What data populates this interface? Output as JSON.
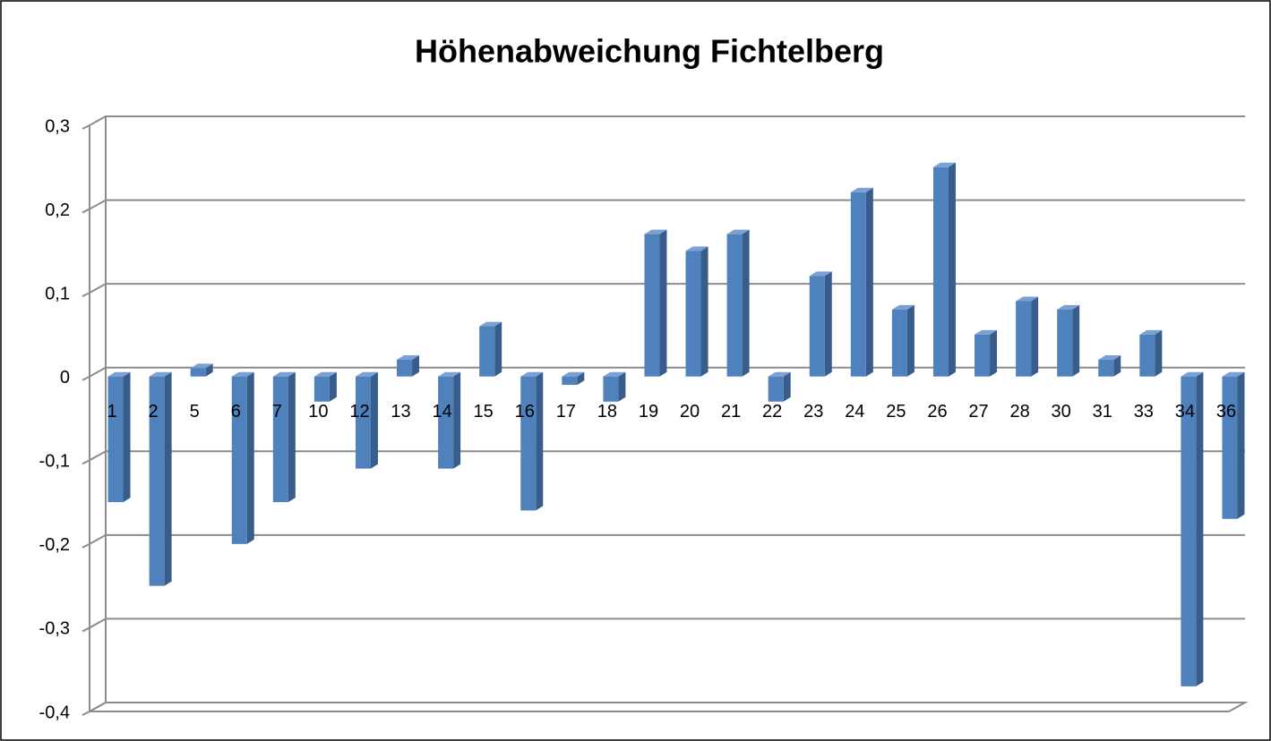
{
  "chart_data": {
    "type": "bar",
    "title": "Höhenabweichung Fichtelberg",
    "categories": [
      "1",
      "2",
      "5",
      "6",
      "7",
      "10",
      "12",
      "13",
      "14",
      "15",
      "16",
      "17",
      "18",
      "19",
      "20",
      "21",
      "22",
      "23",
      "24",
      "25",
      "26",
      "27",
      "28",
      "30",
      "31",
      "33",
      "34",
      "36"
    ],
    "values": [
      -0.15,
      -0.25,
      0.01,
      -0.2,
      -0.15,
      -0.03,
      -0.11,
      0.02,
      -0.11,
      0.06,
      -0.16,
      -0.01,
      -0.03,
      0.17,
      0.15,
      0.17,
      -0.03,
      0.12,
      0.22,
      0.08,
      0.25,
      0.05,
      0.09,
      0.08,
      0.02,
      0.05,
      -0.37,
      -0.17
    ],
    "color": "#4f81bd",
    "ylim": [
      -0.4,
      0.3
    ],
    "yticks": [
      {
        "value": 0.3,
        "label": "0,3"
      },
      {
        "value": 0.2,
        "label": "0,2"
      },
      {
        "value": 0.1,
        "label": "0,1"
      },
      0,
      {
        "value": -0.1,
        "label": "-0,1"
      },
      {
        "value": -0.2,
        "label": "-0,2"
      },
      {
        "value": -0.3,
        "label": "-0,3"
      },
      {
        "value": -0.4,
        "label": "-0,4"
      }
    ],
    "grid": true
  }
}
